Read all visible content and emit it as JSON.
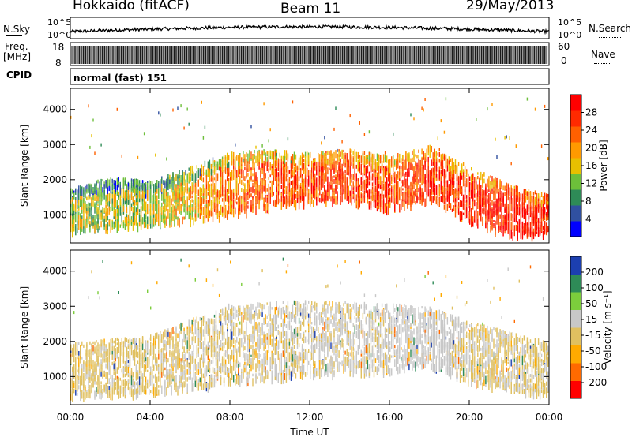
{
  "header": {
    "station": "Hokkaido (fitACF)",
    "beam": "Beam 11",
    "date": "29/May/2013"
  },
  "top_panels": {
    "nsky_label": "N.Sky",
    "nsky_ticks": [
      "10^5",
      "10^0"
    ],
    "nsearch_label": "N.Search",
    "nsearch_ticks": [
      "10^5",
      "10^0"
    ],
    "freq_label": "Freq.",
    "freq_unit": "[MHz]",
    "freq_ticks": [
      "18",
      "8"
    ],
    "nave_label": "Nave",
    "nave_ticks": [
      "60",
      "0"
    ],
    "cpid_label": "CPID",
    "cpid_text": "normal (fast) 151"
  },
  "axes": {
    "ylabel": "Slant Range [km]",
    "xlabel": "Time UT",
    "yticks": [
      "1000",
      "2000",
      "3000",
      "4000"
    ],
    "xticks": [
      "00:00",
      "04:00",
      "08:00",
      "12:00",
      "16:00",
      "20:00",
      "00:00"
    ]
  },
  "colors": {
    "power": [
      "#0000ff",
      "#3050a0",
      "#2e8b57",
      "#6dbf3a",
      "#e8c000",
      "#ff9a00",
      "#ff6000",
      "#ff2a00",
      "#ff0000"
    ],
    "velocity": [
      "#ff0000",
      "#ff6a00",
      "#ffaa00",
      "#e0c060",
      "#c8c8c8",
      "#7ccd3c",
      "#2e8b57",
      "#1c3fb0"
    ]
  },
  "chart_data": [
    {
      "type": "heatmap",
      "title": "",
      "xlabel": "",
      "ylabel": "Slant Range [km]",
      "xlim": [
        0,
        24
      ],
      "ylim": [
        200,
        4600
      ],
      "colorbar": {
        "label": "Power [dB]",
        "ticks": [
          "4",
          "8",
          "12",
          "16",
          "20",
          "24",
          "28"
        ],
        "range": [
          0,
          32
        ]
      },
      "band": [
        {
          "t": 0,
          "lo": 600,
          "hi": 1800,
          "v": 15
        },
        {
          "t": 2,
          "lo": 700,
          "hi": 2100,
          "v": 14
        },
        {
          "t": 4,
          "lo": 800,
          "hi": 2000,
          "v": 15
        },
        {
          "t": 6,
          "lo": 900,
          "hi": 2400,
          "v": 18
        },
        {
          "t": 8,
          "lo": 1100,
          "hi": 2800,
          "v": 22
        },
        {
          "t": 10,
          "lo": 1300,
          "hi": 2900,
          "v": 24
        },
        {
          "t": 12,
          "lo": 1400,
          "hi": 2800,
          "v": 25
        },
        {
          "t": 14,
          "lo": 1500,
          "hi": 2900,
          "v": 26
        },
        {
          "t": 16,
          "lo": 1200,
          "hi": 2700,
          "v": 25
        },
        {
          "t": 18,
          "lo": 1500,
          "hi": 3000,
          "v": 26
        },
        {
          "t": 20,
          "lo": 900,
          "hi": 2400,
          "v": 27
        },
        {
          "t": 22,
          "lo": 500,
          "hi": 1900,
          "v": 29
        },
        {
          "t": 24,
          "lo": 500,
          "hi": 1600,
          "v": 28
        }
      ]
    },
    {
      "type": "heatmap",
      "title": "",
      "xlabel": "Time UT",
      "ylabel": "Slant Range [km]",
      "xlim": [
        0,
        24
      ],
      "ylim": [
        200,
        4600
      ],
      "colorbar": {
        "label": "Velocity [m s⁻¹]",
        "ticks": [
          "-200",
          "-100",
          "-50",
          "-15",
          "15",
          "50",
          "100",
          "200"
        ],
        "range": [
          -250,
          250
        ]
      },
      "band": [
        {
          "t": 0,
          "lo": 500,
          "hi": 2000,
          "v": -10
        },
        {
          "t": 4,
          "lo": 600,
          "hi": 2200,
          "v": -5
        },
        {
          "t": 8,
          "lo": 900,
          "hi": 3100,
          "v": 0
        },
        {
          "t": 12,
          "lo": 1100,
          "hi": 3200,
          "v": 5
        },
        {
          "t": 16,
          "lo": 1200,
          "hi": 3100,
          "v": 10
        },
        {
          "t": 18,
          "lo": 1400,
          "hi": 3000,
          "v": 30
        },
        {
          "t": 20,
          "lo": 900,
          "hi": 2600,
          "v": 0
        },
        {
          "t": 24,
          "lo": 500,
          "hi": 2000,
          "v": -5
        }
      ]
    }
  ]
}
